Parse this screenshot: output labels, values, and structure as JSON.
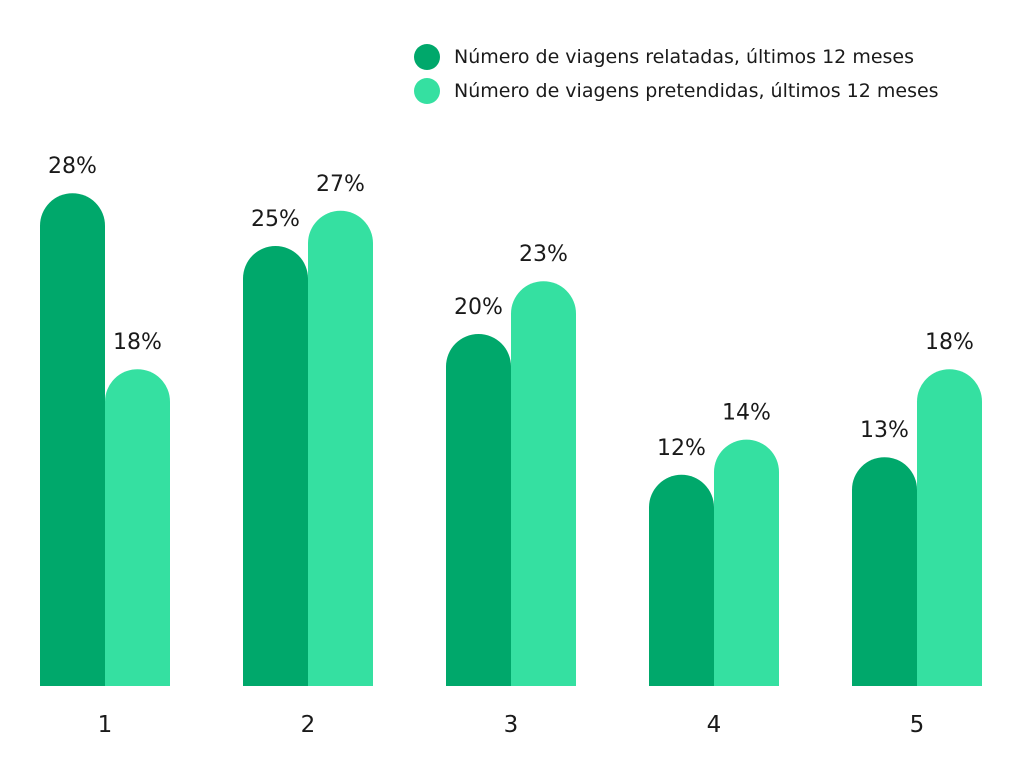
{
  "chart_data": {
    "type": "bar",
    "categories": [
      "1",
      "2",
      "3",
      "4",
      "5"
    ],
    "series": [
      {
        "name": "Número de viagens relatadas, últimos 12 meses",
        "values": [
          28,
          25,
          20,
          12,
          13
        ],
        "labels": [
          "28%",
          "25%",
          "20%",
          "12%",
          "13%"
        ],
        "color": "#00a86b"
      },
      {
        "name": "Número de viagens pretendidas, últimos 12 meses",
        "values": [
          18,
          27,
          23,
          14,
          18
        ],
        "labels": [
          "18%",
          "27%",
          "23%",
          "14%",
          "18%"
        ],
        "color": "#35e0a1"
      }
    ],
    "unit": "%",
    "ylim": [
      0,
      30
    ],
    "grid": false,
    "legend_position": "top-right"
  }
}
